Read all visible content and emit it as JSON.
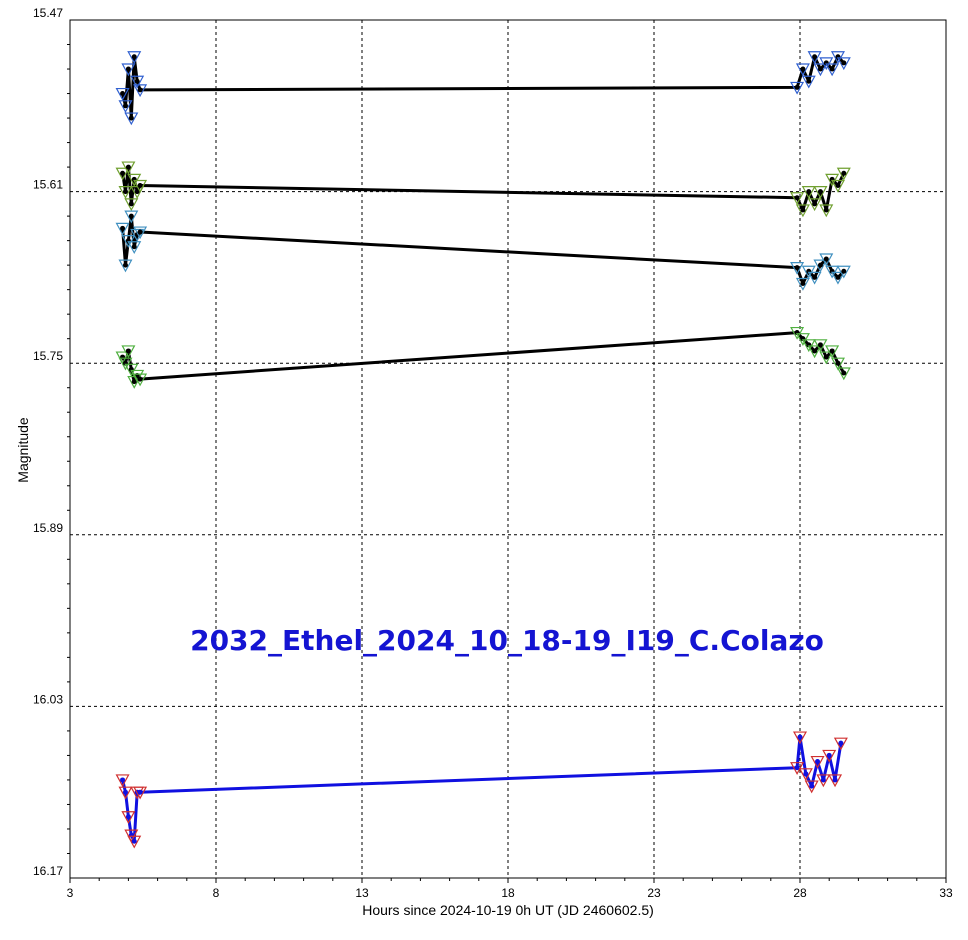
{
  "chart_data": {
    "type": "line",
    "title": "",
    "xlabel": "Hours since 2024-10-19 0h UT (JD 2460602.5)",
    "ylabel": "Magnitude",
    "xlim": [
      3,
      33
    ],
    "ylim": [
      15.47,
      16.17
    ],
    "y_inverted": true,
    "x_ticks": [
      3,
      8,
      13,
      18,
      23,
      28,
      33
    ],
    "y_ticks": [
      "15.47",
      "15.61",
      "15.75",
      "15.89",
      "16.03",
      "16.17"
    ],
    "grid": true,
    "annotation": {
      "text": "2032_Ethel_2024_10_18-19_I19_C.Colazo",
      "color": "#1414d2"
    },
    "series": [
      {
        "color": "#000000",
        "marker_color": "#3060d0",
        "x": [
          4.8,
          4.9,
          5.0,
          5.1,
          5.2,
          5.3,
          5.4,
          27.9,
          28.1,
          28.3,
          28.5,
          28.7,
          28.9,
          29.1,
          29.3,
          29.5
        ],
        "y": [
          15.53,
          15.54,
          15.51,
          15.55,
          15.5,
          15.52,
          15.527,
          15.525,
          15.51,
          15.52,
          15.5,
          15.51,
          15.505,
          15.51,
          15.5,
          15.505
        ]
      },
      {
        "color": "#000000",
        "marker_color": "#70a030",
        "x": [
          4.8,
          4.9,
          5.0,
          5.1,
          5.2,
          5.3,
          5.4,
          27.9,
          28.1,
          28.3,
          28.5,
          28.7,
          28.9,
          29.1,
          29.3,
          29.5
        ],
        "y": [
          15.595,
          15.61,
          15.59,
          15.62,
          15.6,
          15.61,
          15.605,
          15.615,
          15.625,
          15.61,
          15.62,
          15.61,
          15.625,
          15.6,
          15.605,
          15.595
        ]
      },
      {
        "color": "#000000",
        "marker_color": "#4090c0",
        "x": [
          4.8,
          4.9,
          5.0,
          5.1,
          5.2,
          5.3,
          5.4,
          27.9,
          28.1,
          28.3,
          28.5,
          28.7,
          28.9,
          29.1,
          29.3,
          29.5
        ],
        "y": [
          15.64,
          15.67,
          15.65,
          15.63,
          15.655,
          15.645,
          15.643,
          15.672,
          15.685,
          15.675,
          15.68,
          15.67,
          15.665,
          15.675,
          15.68,
          15.675
        ]
      },
      {
        "color": "#000000",
        "marker_color": "#50b040",
        "x": [
          4.8,
          4.9,
          5.0,
          5.1,
          5.2,
          5.3,
          5.4,
          27.9,
          28.1,
          28.3,
          28.5,
          28.7,
          28.9,
          29.1,
          29.3,
          29.5
        ],
        "y": [
          15.745,
          15.75,
          15.74,
          15.755,
          15.765,
          15.76,
          15.763,
          15.725,
          15.73,
          15.735,
          15.74,
          15.735,
          15.745,
          15.74,
          15.75,
          15.758
        ]
      },
      {
        "color": "#1010e0",
        "marker_color": "#d03030",
        "x": [
          4.8,
          4.9,
          5.0,
          5.1,
          5.2,
          5.3,
          5.4,
          27.9,
          28.0,
          28.2,
          28.4,
          28.6,
          28.8,
          29.0,
          29.2,
          29.4
        ],
        "y": [
          16.09,
          16.1,
          16.12,
          16.135,
          16.14,
          16.1,
          16.1,
          16.08,
          16.055,
          16.085,
          16.095,
          16.075,
          16.09,
          16.07,
          16.09,
          16.06
        ]
      }
    ]
  }
}
